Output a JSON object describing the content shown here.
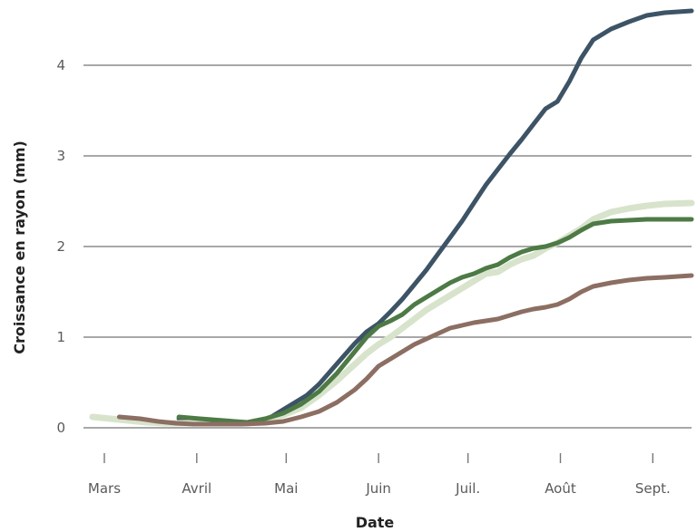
{
  "chart_data": {
    "type": "line",
    "title": "",
    "xlabel": "Date",
    "ylabel": "Croissance en rayon (mm)",
    "x_ticks": [
      {
        "label": "Mars",
        "day": 0
      },
      {
        "label": "Avril",
        "day": 31
      },
      {
        "label": "Mai",
        "day": 61
      },
      {
        "label": "Juin",
        "day": 92
      },
      {
        "label": "Juil.",
        "day": 122
      },
      {
        "label": "Août",
        "day": 153
      },
      {
        "label": "Sept.",
        "day": 184
      }
    ],
    "xlim": [
      -7,
      197
    ],
    "y_ticks": [
      0,
      1,
      2,
      3,
      4
    ],
    "ylim": [
      -0.15,
      4.62
    ],
    "grid": true,
    "series": [
      {
        "color": "#3d5366",
        "width": 5,
        "points": [
          [
            25,
            0.1
          ],
          [
            32,
            0.07
          ],
          [
            40,
            0.06
          ],
          [
            48,
            0.05
          ],
          [
            52,
            0.07
          ],
          [
            56,
            0.12
          ],
          [
            60,
            0.2
          ],
          [
            64,
            0.28
          ],
          [
            68,
            0.36
          ],
          [
            72,
            0.48
          ],
          [
            76,
            0.63
          ],
          [
            80,
            0.78
          ],
          [
            84,
            0.93
          ],
          [
            88,
            1.06
          ],
          [
            92,
            1.15
          ],
          [
            96,
            1.28
          ],
          [
            100,
            1.42
          ],
          [
            104,
            1.58
          ],
          [
            108,
            1.74
          ],
          [
            112,
            1.92
          ],
          [
            116,
            2.1
          ],
          [
            120,
            2.28
          ],
          [
            124,
            2.48
          ],
          [
            128,
            2.68
          ],
          [
            132,
            2.85
          ],
          [
            136,
            3.02
          ],
          [
            140,
            3.18
          ],
          [
            144,
            3.35
          ],
          [
            148,
            3.52
          ],
          [
            152,
            3.6
          ],
          [
            156,
            3.82
          ],
          [
            160,
            4.08
          ],
          [
            164,
            4.28
          ],
          [
            170,
            4.4
          ],
          [
            176,
            4.48
          ],
          [
            182,
            4.55
          ],
          [
            188,
            4.58
          ],
          [
            197,
            4.6
          ]
        ]
      },
      {
        "color": "#d8e3cc",
        "width": 7,
        "points": [
          [
            -4,
            0.12
          ],
          [
            2,
            0.1
          ],
          [
            8,
            0.08
          ],
          [
            14,
            0.06
          ],
          [
            20,
            0.05
          ],
          [
            26,
            0.05
          ],
          [
            32,
            0.05
          ],
          [
            40,
            0.05
          ],
          [
            48,
            0.05
          ],
          [
            54,
            0.09
          ],
          [
            60,
            0.14
          ],
          [
            66,
            0.22
          ],
          [
            72,
            0.36
          ],
          [
            78,
            0.52
          ],
          [
            84,
            0.7
          ],
          [
            88,
            0.82
          ],
          [
            92,
            0.92
          ],
          [
            96,
            1.0
          ],
          [
            100,
            1.1
          ],
          [
            104,
            1.2
          ],
          [
            108,
            1.3
          ],
          [
            112,
            1.38
          ],
          [
            116,
            1.46
          ],
          [
            120,
            1.54
          ],
          [
            124,
            1.62
          ],
          [
            128,
            1.7
          ],
          [
            132,
            1.72
          ],
          [
            136,
            1.8
          ],
          [
            140,
            1.86
          ],
          [
            144,
            1.9
          ],
          [
            148,
            1.98
          ],
          [
            152,
            2.04
          ],
          [
            156,
            2.12
          ],
          [
            160,
            2.2
          ],
          [
            164,
            2.3
          ],
          [
            170,
            2.38
          ],
          [
            176,
            2.42
          ],
          [
            182,
            2.45
          ],
          [
            188,
            2.47
          ],
          [
            197,
            2.48
          ]
        ]
      },
      {
        "color": "#4d7a45",
        "width": 5,
        "points": [
          [
            25,
            0.12
          ],
          [
            32,
            0.1
          ],
          [
            40,
            0.08
          ],
          [
            48,
            0.06
          ],
          [
            54,
            0.1
          ],
          [
            60,
            0.16
          ],
          [
            66,
            0.26
          ],
          [
            72,
            0.4
          ],
          [
            78,
            0.6
          ],
          [
            84,
            0.84
          ],
          [
            88,
            1.0
          ],
          [
            92,
            1.12
          ],
          [
            96,
            1.18
          ],
          [
            100,
            1.25
          ],
          [
            104,
            1.36
          ],
          [
            108,
            1.44
          ],
          [
            112,
            1.52
          ],
          [
            116,
            1.6
          ],
          [
            120,
            1.66
          ],
          [
            124,
            1.7
          ],
          [
            128,
            1.76
          ],
          [
            132,
            1.8
          ],
          [
            136,
            1.88
          ],
          [
            140,
            1.94
          ],
          [
            144,
            1.98
          ],
          [
            148,
            2.0
          ],
          [
            152,
            2.04
          ],
          [
            156,
            2.1
          ],
          [
            160,
            2.18
          ],
          [
            164,
            2.25
          ],
          [
            170,
            2.28
          ],
          [
            176,
            2.29
          ],
          [
            182,
            2.3
          ],
          [
            197,
            2.3
          ]
        ]
      },
      {
        "color": "#8c6e62",
        "width": 5,
        "points": [
          [
            5,
            0.12
          ],
          [
            12,
            0.1
          ],
          [
            18,
            0.07
          ],
          [
            24,
            0.05
          ],
          [
            30,
            0.04
          ],
          [
            38,
            0.04
          ],
          [
            46,
            0.04
          ],
          [
            54,
            0.05
          ],
          [
            60,
            0.07
          ],
          [
            66,
            0.12
          ],
          [
            72,
            0.18
          ],
          [
            78,
            0.28
          ],
          [
            84,
            0.42
          ],
          [
            88,
            0.54
          ],
          [
            92,
            0.68
          ],
          [
            96,
            0.76
          ],
          [
            100,
            0.84
          ],
          [
            104,
            0.92
          ],
          [
            108,
            0.98
          ],
          [
            112,
            1.04
          ],
          [
            116,
            1.1
          ],
          [
            120,
            1.13
          ],
          [
            124,
            1.16
          ],
          [
            128,
            1.18
          ],
          [
            132,
            1.2
          ],
          [
            136,
            1.24
          ],
          [
            140,
            1.28
          ],
          [
            144,
            1.31
          ],
          [
            148,
            1.33
          ],
          [
            152,
            1.36
          ],
          [
            156,
            1.42
          ],
          [
            160,
            1.5
          ],
          [
            164,
            1.56
          ],
          [
            170,
            1.6
          ],
          [
            176,
            1.63
          ],
          [
            182,
            1.65
          ],
          [
            188,
            1.66
          ],
          [
            197,
            1.68
          ]
        ]
      }
    ]
  }
}
